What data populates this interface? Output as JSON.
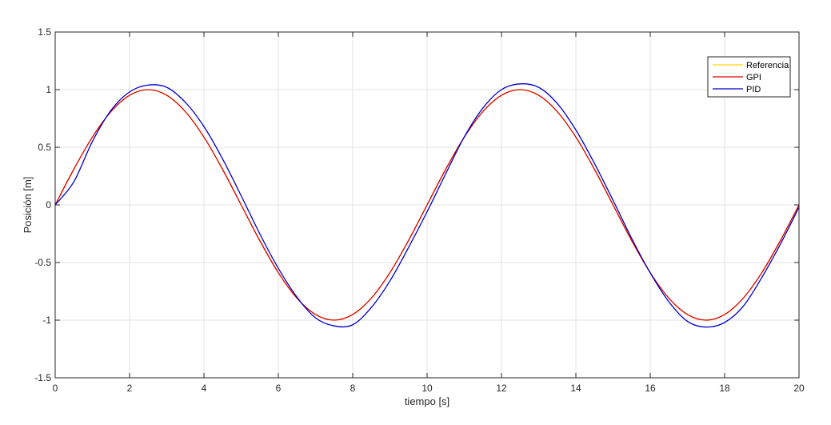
{
  "chart_data": {
    "type": "line",
    "title": "",
    "xlabel": "tiempo [s]",
    "ylabel": "Posición [m]",
    "xlim": [
      0,
      20
    ],
    "ylim": [
      -1.5,
      1.5
    ],
    "grid": true,
    "legend_position": "top-right",
    "x_ticks": [
      "0",
      "2",
      "4",
      "6",
      "8",
      "10",
      "12",
      "14",
      "16",
      "18",
      "20"
    ],
    "y_ticks": [
      "1.5",
      "1",
      "0.5",
      "0",
      "-0.5",
      "-1",
      "-1.5"
    ],
    "x": [
      0,
      0.5,
      1,
      1.5,
      2,
      2.5,
      3,
      3.5,
      4,
      4.5,
      5,
      5.5,
      6,
      6.5,
      7,
      7.5,
      8,
      8.5,
      9,
      9.5,
      10,
      10.5,
      11,
      11.5,
      12,
      12.5,
      13,
      13.5,
      14,
      14.5,
      15,
      15.5,
      16,
      16.5,
      17,
      17.5,
      18,
      18.5,
      19,
      19.5,
      20
    ],
    "series": [
      {
        "name": "Referencia",
        "color": "#ffd700",
        "values": [
          0,
          0.309,
          0.588,
          0.809,
          0.951,
          1.0,
          0.951,
          0.809,
          0.588,
          0.309,
          0,
          -0.309,
          -0.588,
          -0.809,
          -0.951,
          -1.0,
          -0.951,
          -0.809,
          -0.588,
          -0.309,
          0,
          0.309,
          0.588,
          0.809,
          0.951,
          1.0,
          0.951,
          0.809,
          0.588,
          0.309,
          0,
          -0.309,
          -0.588,
          -0.809,
          -0.951,
          -1.0,
          -0.951,
          -0.809,
          -0.588,
          -0.309,
          0
        ]
      },
      {
        "name": "GPI",
        "color": "#dd0000",
        "values": [
          0,
          0.309,
          0.588,
          0.809,
          0.951,
          1.0,
          0.951,
          0.809,
          0.588,
          0.309,
          0,
          -0.309,
          -0.588,
          -0.809,
          -0.951,
          -1.0,
          -0.951,
          -0.809,
          -0.588,
          -0.309,
          0,
          0.309,
          0.588,
          0.809,
          0.951,
          1.0,
          0.951,
          0.809,
          0.588,
          0.309,
          0,
          -0.309,
          -0.588,
          -0.809,
          -0.951,
          -1.0,
          -0.951,
          -0.809,
          -0.588,
          -0.309,
          0
        ]
      },
      {
        "name": "PID",
        "color": "#0000cc",
        "values": [
          0,
          0.2,
          0.55,
          0.82,
          0.98,
          1.04,
          1.02,
          0.89,
          0.68,
          0.4,
          0.08,
          -0.25,
          -0.55,
          -0.8,
          -0.98,
          -1.05,
          -1.04,
          -0.89,
          -0.66,
          -0.37,
          -0.06,
          0.27,
          0.59,
          0.84,
          1.0,
          1.05,
          1.02,
          0.88,
          0.65,
          0.36,
          0.04,
          -0.29,
          -0.59,
          -0.84,
          -1.01,
          -1.06,
          -1.02,
          -0.88,
          -0.63,
          -0.34,
          -0.02
        ]
      }
    ]
  }
}
